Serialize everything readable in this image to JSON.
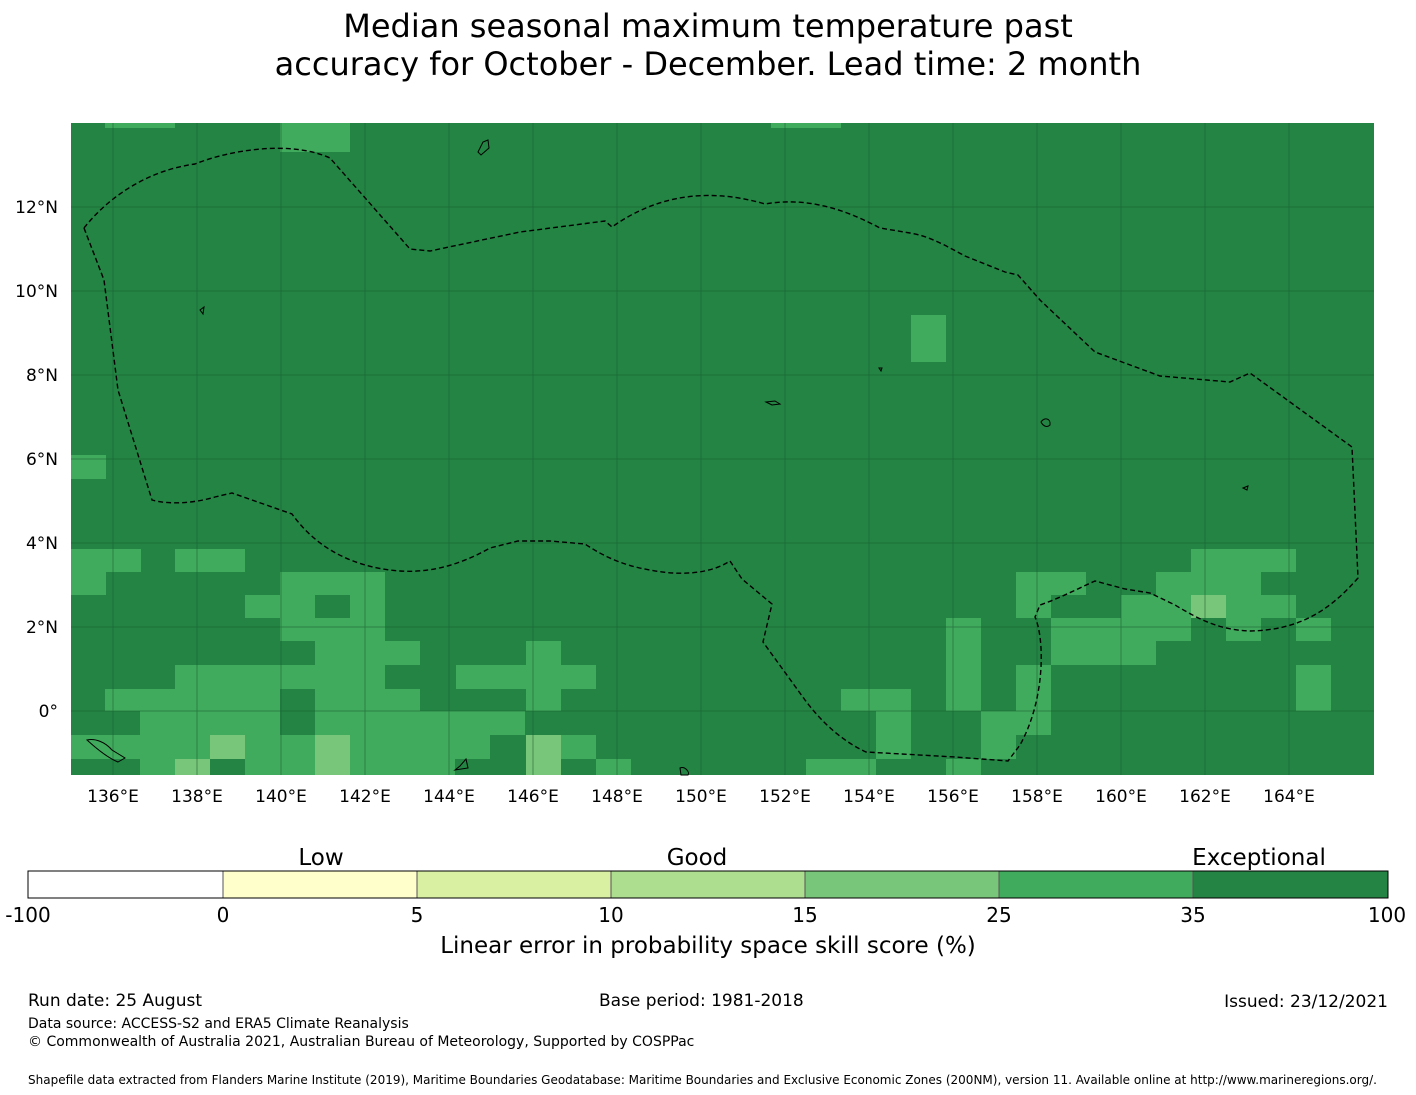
{
  "title": {
    "line1": "Median seasonal maximum temperature past",
    "line2": "accuracy for October - December. Lead time: 2 month"
  },
  "map": {
    "lon_range": [
      135,
      166
    ],
    "lat_range": [
      -1.5,
      14
    ],
    "x_ticks": [
      "136°E",
      "138°E",
      "140°E",
      "142°E",
      "144°E",
      "146°E",
      "148°E",
      "150°E",
      "152°E",
      "154°E",
      "156°E",
      "158°E",
      "160°E",
      "162°E",
      "164°E"
    ],
    "y_ticks": [
      "12°N",
      "10°N",
      "8°N",
      "6°N",
      "4°N",
      "2°N",
      "0°"
    ],
    "background_color": "#238443",
    "boundary_style": "dashed line (EEZ)"
  },
  "colorbar": {
    "categories": [
      "Low",
      "Good",
      "Exceptional"
    ],
    "tick_labels": [
      "-100",
      "0",
      "5",
      "10",
      "15",
      "25",
      "35",
      "100"
    ],
    "colors": [
      "#ffffff",
      "#ffffcc",
      "#d9f0a3",
      "#addd8e",
      "#78c679",
      "#41ab5d",
      "#238443"
    ],
    "label": "Linear error in probability space skill score (%)"
  },
  "footer": {
    "run_date": "Run date: 25 August",
    "base_period": "Base period: 1981-2018",
    "issued": "Issued: 23/12/2021",
    "data_source": "Data source: ACCESS-S2 and ERA5 Climate Reanalysis",
    "copyright": "© Commonwealth of Australia 2021, Australian Bureau of Meteorology, Supported by COSPPac",
    "shapefile": "Shapefile data extracted from Flanders Marine Institute (2019), Maritime Boundaries Geodatabase: Maritime Boundaries and Exclusive Economic Zones (200NM), version 11. Available online at http://www.marineregions.org/."
  }
}
